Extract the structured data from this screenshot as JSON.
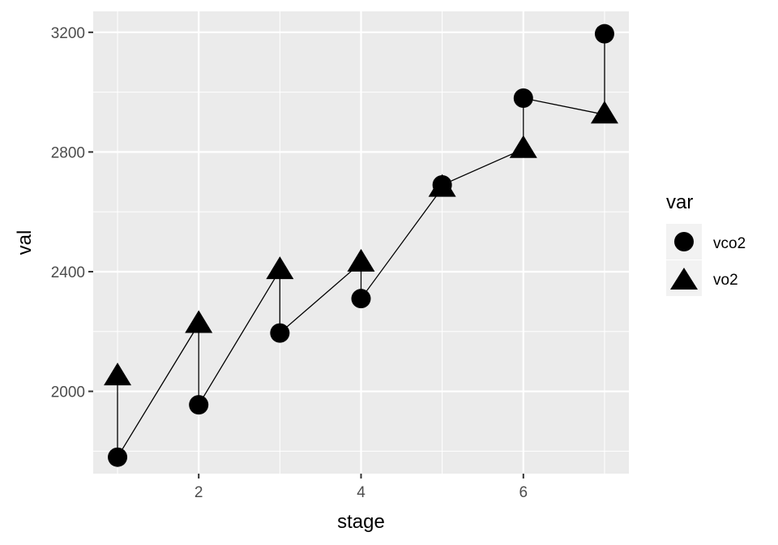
{
  "chart_data": {
    "type": "scatter",
    "xlabel": "stage",
    "ylabel": "val",
    "xlim": [
      0.7,
      7.3
    ],
    "ylim": [
      1725,
      3270
    ],
    "x_ticks": [
      2,
      4,
      6
    ],
    "x_minor_ticks": [
      1,
      3,
      5,
      7
    ],
    "y_ticks": [
      2000,
      2400,
      2800,
      3200
    ],
    "y_minor_ticks": [
      1800,
      2200,
      2600,
      3000
    ],
    "grid": true,
    "panel_background": "#ebebeb",
    "legend": {
      "title": "var",
      "position": "right",
      "entries": [
        {
          "label": "vco2",
          "shape": "circle"
        },
        {
          "label": "vo2",
          "shape": "triangle"
        }
      ]
    },
    "series": [
      {
        "name": "vco2",
        "shape": "circle",
        "color": "#000000",
        "x": [
          1,
          2,
          3,
          4,
          5,
          6,
          7
        ],
        "y": [
          1780,
          1955,
          2195,
          2310,
          2690,
          2980,
          3195
        ]
      },
      {
        "name": "vo2",
        "shape": "triangle",
        "color": "#000000",
        "x": [
          1,
          2,
          3,
          4,
          5,
          6,
          7
        ],
        "y": [
          2050,
          2225,
          2405,
          2430,
          2680,
          2810,
          2925
        ]
      }
    ],
    "path_order": [
      [
        1,
        "vo2"
      ],
      [
        1,
        "vco2"
      ],
      [
        2,
        "vo2"
      ],
      [
        2,
        "vco2"
      ],
      [
        3,
        "vo2"
      ],
      [
        3,
        "vco2"
      ],
      [
        4,
        "vo2"
      ],
      [
        4,
        "vco2"
      ],
      [
        5,
        "vo2"
      ],
      [
        5,
        "vco2"
      ],
      [
        6,
        "vo2"
      ],
      [
        6,
        "vco2"
      ],
      [
        7,
        "vo2"
      ],
      [
        7,
        "vco2"
      ]
    ]
  }
}
